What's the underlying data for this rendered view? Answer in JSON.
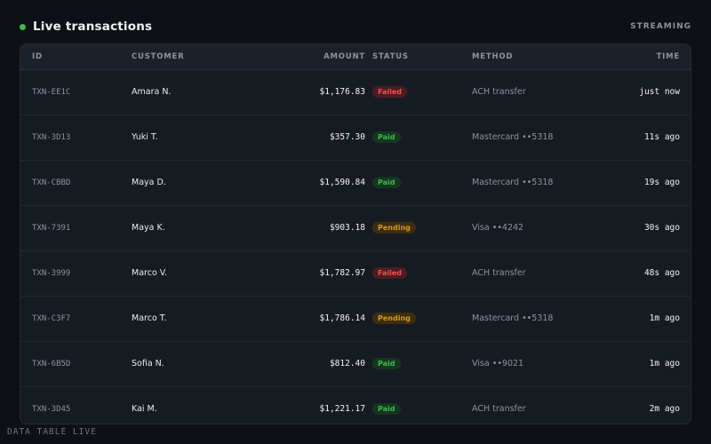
{
  "header": {
    "title": "Live transactions",
    "streaming_label": "STREAMING",
    "live_color": "#3fb950"
  },
  "table": {
    "columns": {
      "id": "ID",
      "customer": "CUSTOMER",
      "amount": "AMOUNT",
      "status": "STATUS",
      "method": "METHOD",
      "time": "TIME"
    },
    "rows": [
      {
        "id": "TXN-EE1C",
        "customer": "Amara N.",
        "amount": "$1,176.83",
        "status": "Failed",
        "method": "ACH transfer",
        "time": "just now"
      },
      {
        "id": "TXN-3D13",
        "customer": "Yuki T.",
        "amount": "$357.30",
        "status": "Paid",
        "method": "Mastercard ••5318",
        "time": "11s ago"
      },
      {
        "id": "TXN-CBBD",
        "customer": "Maya D.",
        "amount": "$1,590.84",
        "status": "Paid",
        "method": "Mastercard ••5318",
        "time": "19s ago"
      },
      {
        "id": "TXN-7391",
        "customer": "Maya K.",
        "amount": "$903.18",
        "status": "Pending",
        "method": "Visa ••4242",
        "time": "30s ago"
      },
      {
        "id": "TXN-3999",
        "customer": "Marco V.",
        "amount": "$1,782.97",
        "status": "Failed",
        "method": "ACH transfer",
        "time": "48s ago"
      },
      {
        "id": "TXN-C3F7",
        "customer": "Marco T.",
        "amount": "$1,786.14",
        "status": "Pending",
        "method": "Mastercard ••5318",
        "time": "1m ago"
      },
      {
        "id": "TXN-6B5D",
        "customer": "Sofia N.",
        "amount": "$812.40",
        "status": "Paid",
        "method": "Visa ••9021",
        "time": "1m ago"
      },
      {
        "id": "TXN-3D45",
        "customer": "Kai M.",
        "amount": "$1,221.17",
        "status": "Paid",
        "method": "ACH transfer",
        "time": "2m ago"
      }
    ]
  },
  "status_colors": {
    "Failed": "#f85149",
    "Paid": "#3fb950",
    "Pending": "#d29922"
  },
  "footer": {
    "label": "DATA TABLE LIVE"
  }
}
